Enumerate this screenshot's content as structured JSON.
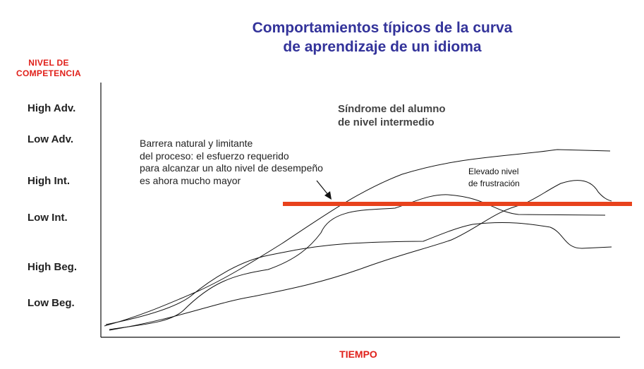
{
  "title": {
    "line1": "Comportamientos típicos de la curva",
    "line2": "de aprendizaje de un idioma"
  },
  "y_axis_label": {
    "line1": "NIVEL DE",
    "line2": "COMPETENCIA"
  },
  "x_axis_label": "TIEMPO",
  "levels": [
    "High Adv.",
    "Low Adv.",
    "High Int.",
    "Low Int.",
    "High Beg.",
    "Low Beg."
  ],
  "annotations": {
    "syndrome": {
      "line1": "Síndrome  del alumno",
      "line2": "de nivel intermedio"
    },
    "barrier": {
      "line1": "Barrera natural y limitante",
      "line2": "del proceso: el esfuerzo requerido",
      "line3": "para alcanzar un alto nivel de desempeño",
      "line4": "es ahora mucho mayor"
    },
    "frustration": {
      "line1": "Elevado nivel",
      "line2": "de frustración"
    }
  },
  "colors": {
    "title": "#33339a",
    "axis_labels": "#e0201a",
    "barrier_line": "#e8421c",
    "curves": "#111111"
  }
}
